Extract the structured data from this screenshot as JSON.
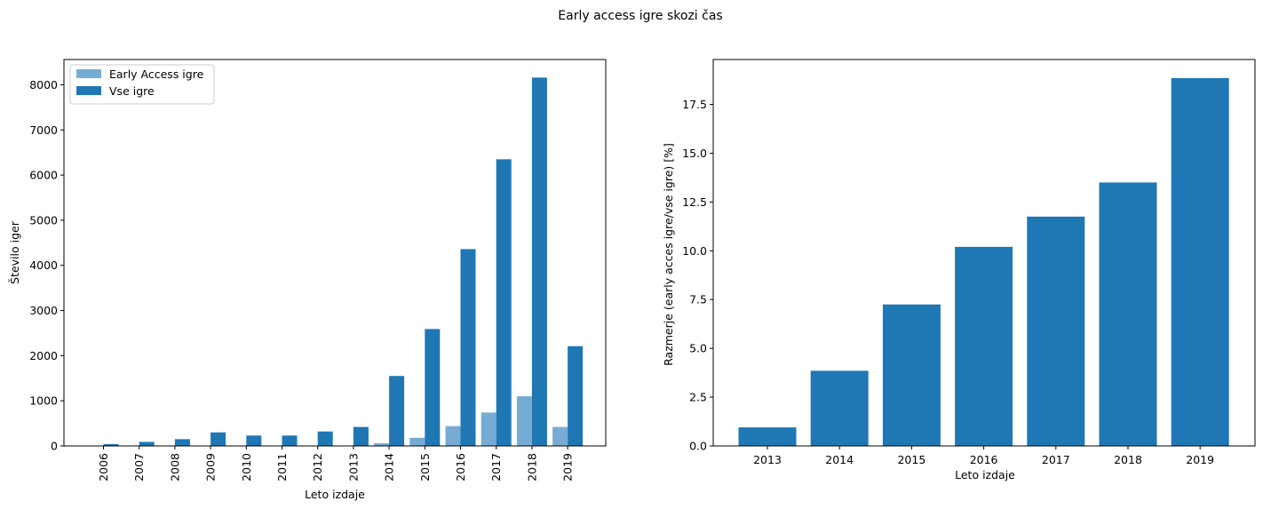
{
  "figure": {
    "title": "Early access igre skozi čas"
  },
  "chart_data": [
    {
      "type": "bar",
      "title": "",
      "xlabel": "Leto izdaje",
      "ylabel": "Število iger",
      "categories": [
        "2006",
        "2007",
        "2008",
        "2009",
        "2010",
        "2011",
        "2012",
        "2013",
        "2014",
        "2015",
        "2016",
        "2017",
        "2018",
        "2019"
      ],
      "series": [
        {
          "name": "Early Access igre",
          "color": "#76acd3",
          "values": [
            0,
            0,
            0,
            0,
            0,
            0,
            0,
            0,
            60,
            180,
            440,
            740,
            1100,
            420
          ]
        },
        {
          "name": "Vse igre",
          "color": "#1f77b4",
          "values": [
            40,
            90,
            150,
            300,
            230,
            230,
            320,
            420,
            1550,
            2590,
            4360,
            6350,
            8160,
            2210
          ]
        }
      ],
      "yticks": [
        0,
        1000,
        2000,
        3000,
        4000,
        5000,
        6000,
        7000,
        8000
      ],
      "ylim": [
        0,
        8560
      ],
      "legend": "upper-left",
      "grid": false,
      "xtick_rotation": 90
    },
    {
      "type": "bar",
      "title": "",
      "xlabel": "Leto izdaje",
      "ylabel": "Razmerje (early acces igre/vse igre) [%]",
      "categories": [
        "2013",
        "2014",
        "2015",
        "2016",
        "2017",
        "2018",
        "2019"
      ],
      "series": [
        {
          "color": "#1f77b4",
          "values": [
            0.95,
            3.85,
            7.25,
            10.2,
            11.75,
            13.5,
            18.85
          ]
        }
      ],
      "yticks": [
        "0.0",
        "2.5",
        "5.0",
        "7.5",
        "10.0",
        "12.5",
        "15.0",
        "17.5"
      ],
      "ylim": [
        0,
        19.8
      ],
      "grid": false
    }
  ]
}
